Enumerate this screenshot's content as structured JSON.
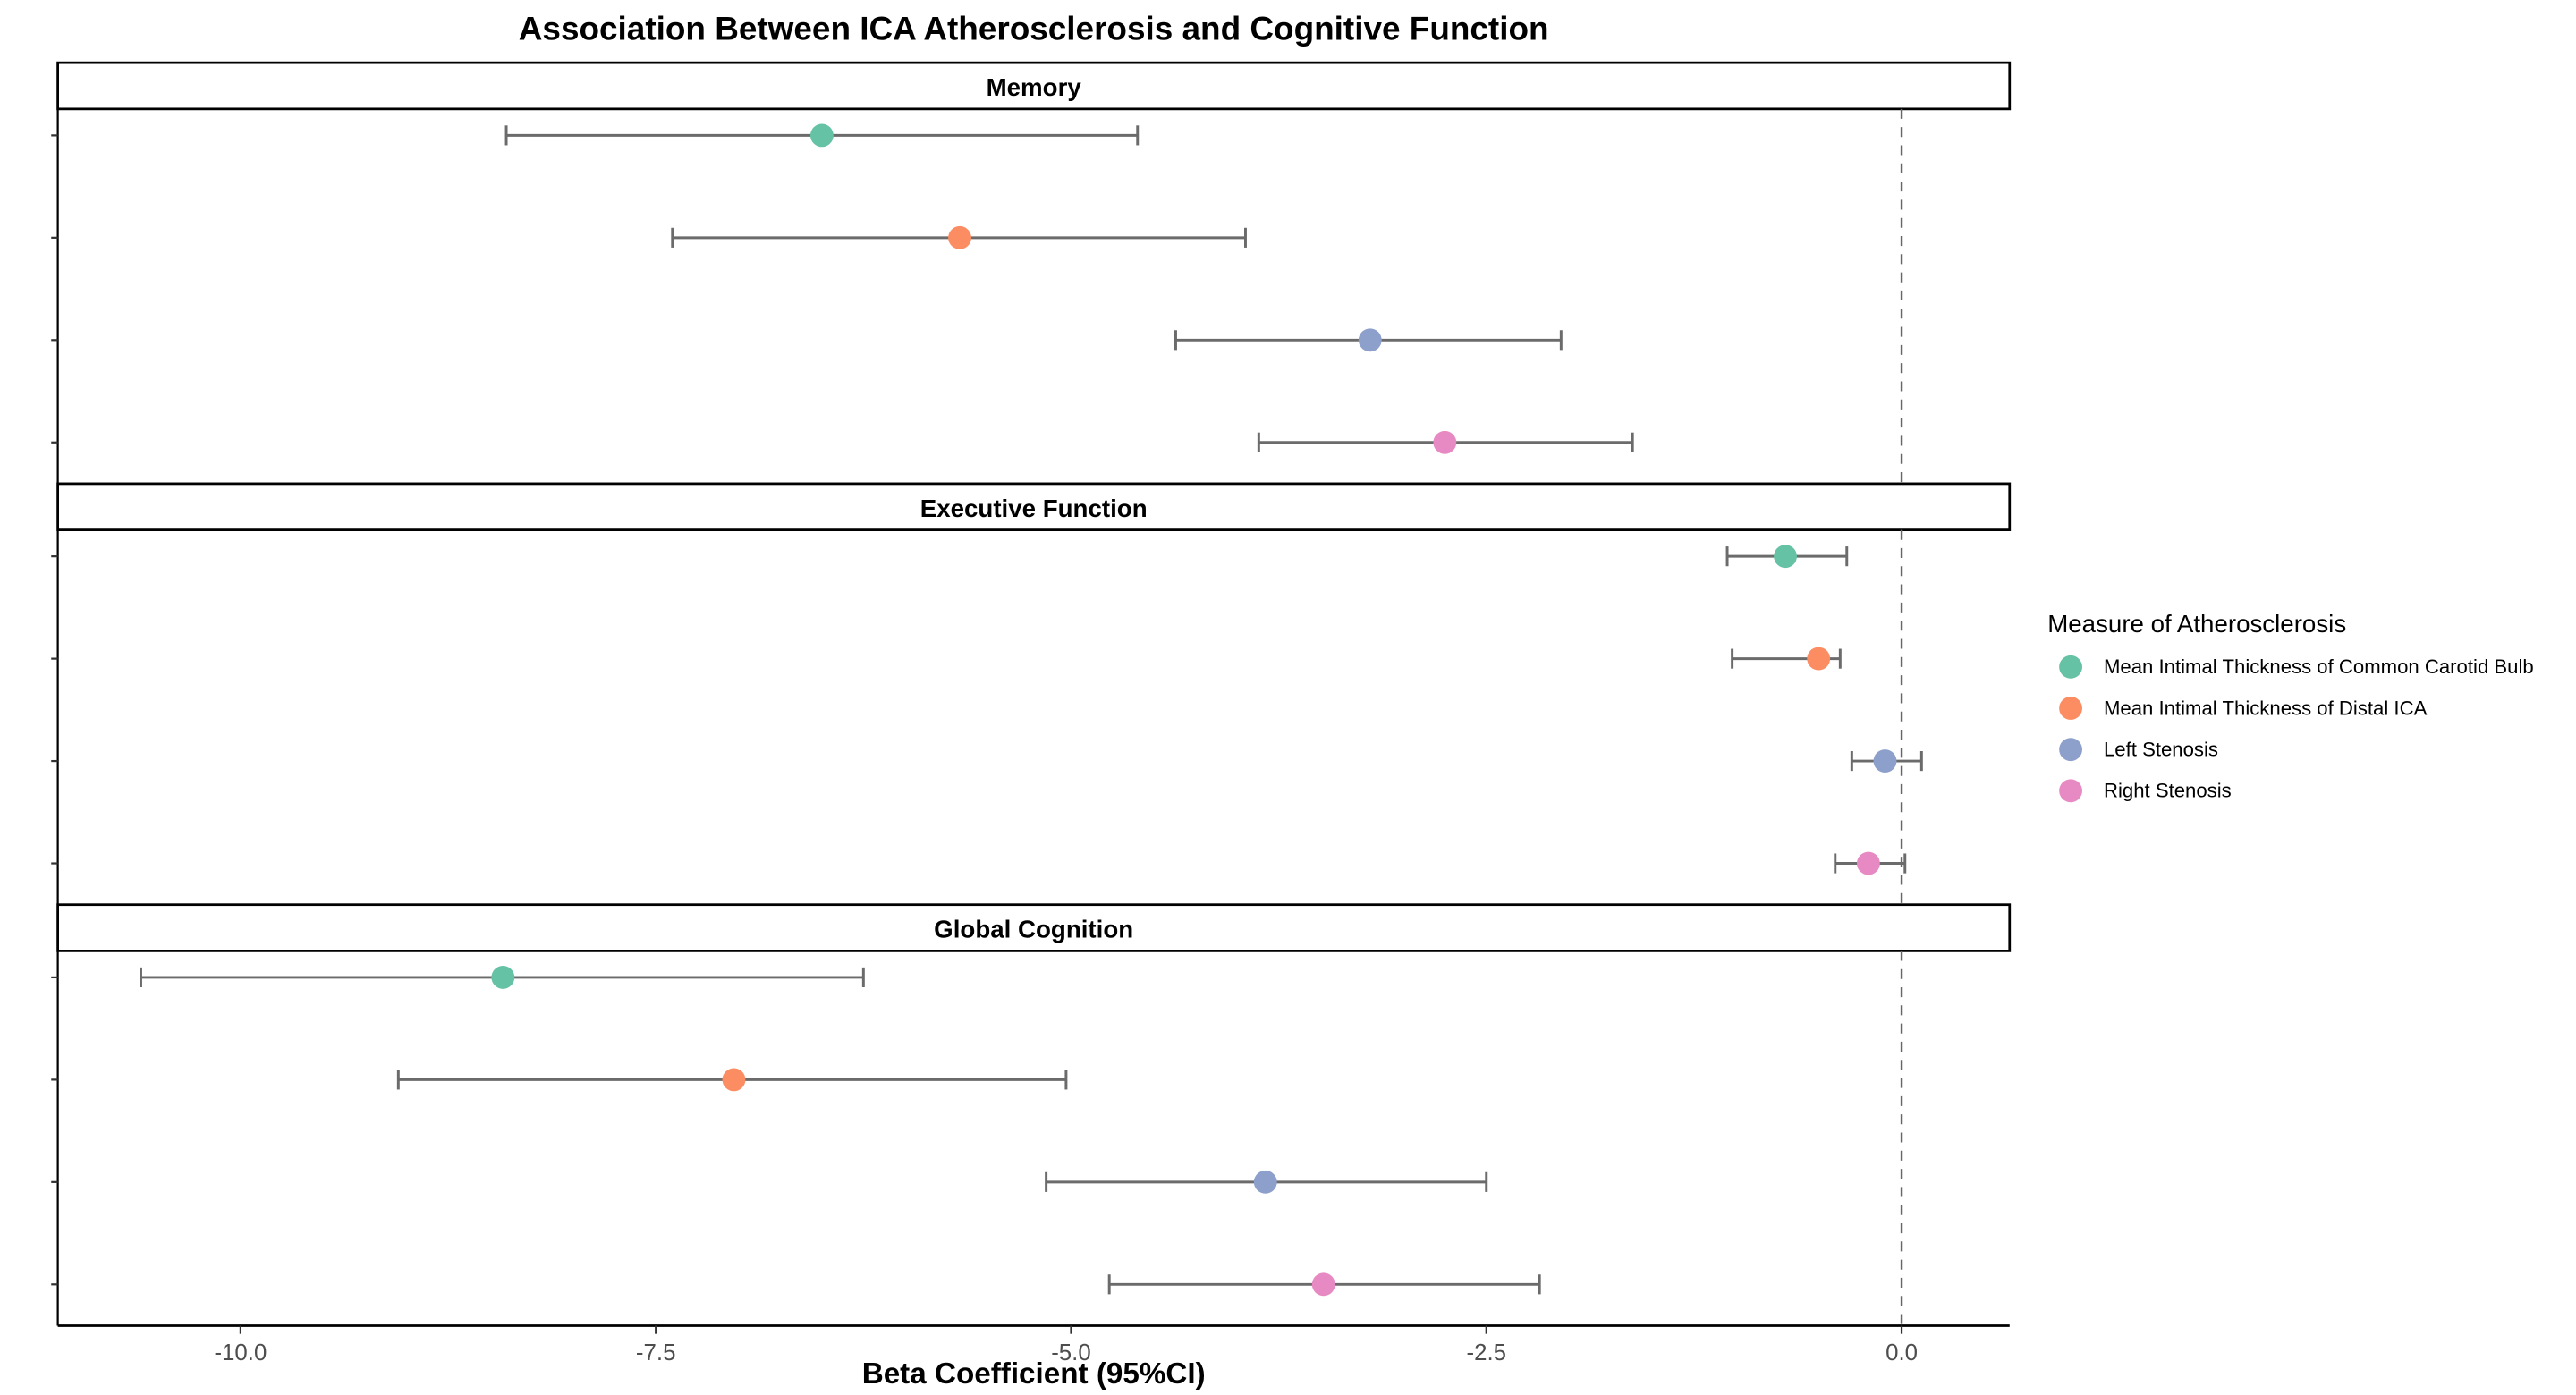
{
  "chart_data": {
    "type": "forest",
    "title": "Association Between ICA Atherosclerosis and Cognitive Function",
    "xlabel": "Beta Coefficient (95%CI)",
    "ylabel": "",
    "xlim": [
      -11.1,
      0.65
    ],
    "x_ticks": [
      -10.0,
      -7.5,
      -5.0,
      -2.5,
      0.0
    ],
    "x_tick_labels": [
      "-10.0",
      "-7.5",
      "-5.0",
      "-2.5",
      "0.0"
    ],
    "reference_line": 0.0,
    "grid": false,
    "legend": {
      "title": "Measure of Atherosclerosis",
      "position": "right",
      "items": [
        {
          "name": "Mean Intimal Thickness of Common Carotid Bulb",
          "color": "#66c2a5"
        },
        {
          "name": "Mean Intimal Thickness of Distal ICA",
          "color": "#fc8d62"
        },
        {
          "name": "Left Stenosis",
          "color": "#8da0cb"
        },
        {
          "name": "Right Stenosis",
          "color": "#e78ac3"
        }
      ]
    },
    "panels": [
      {
        "name": "Memory",
        "series": [
          {
            "name": "Mean Intimal Thickness of Common Carotid Bulb",
            "beta": -6.5,
            "lower": -8.4,
            "upper": -4.6
          },
          {
            "name": "Mean Intimal Thickness of Distal ICA",
            "beta": -5.67,
            "lower": -7.4,
            "upper": -3.95
          },
          {
            "name": "Left Stenosis",
            "beta": -3.2,
            "lower": -4.37,
            "upper": -2.05
          },
          {
            "name": "Right Stenosis",
            "beta": -2.75,
            "lower": -3.87,
            "upper": -1.62
          }
        ]
      },
      {
        "name": "Executive Function",
        "series": [
          {
            "name": "Mean Intimal Thickness of Common Carotid Bulb",
            "beta": -0.7,
            "lower": -1.05,
            "upper": -0.33
          },
          {
            "name": "Mean Intimal Thickness of Distal ICA",
            "beta": -0.5,
            "lower": -1.02,
            "upper": -0.37
          },
          {
            "name": "Left Stenosis",
            "beta": -0.1,
            "lower": -0.3,
            "upper": 0.12
          },
          {
            "name": "Right Stenosis",
            "beta": -0.2,
            "lower": -0.4,
            "upper": 0.02
          }
        ]
      },
      {
        "name": "Global Cognition",
        "series": [
          {
            "name": "Mean Intimal Thickness of Common Carotid Bulb",
            "beta": -8.42,
            "lower": -10.6,
            "upper": -6.25
          },
          {
            "name": "Mean Intimal Thickness of Distal ICA",
            "beta": -7.03,
            "lower": -9.05,
            "upper": -5.03
          },
          {
            "name": "Left Stenosis",
            "beta": -3.83,
            "lower": -5.15,
            "upper": -2.5
          },
          {
            "name": "Right Stenosis",
            "beta": -3.48,
            "lower": -4.77,
            "upper": -2.18
          }
        ]
      }
    ]
  }
}
